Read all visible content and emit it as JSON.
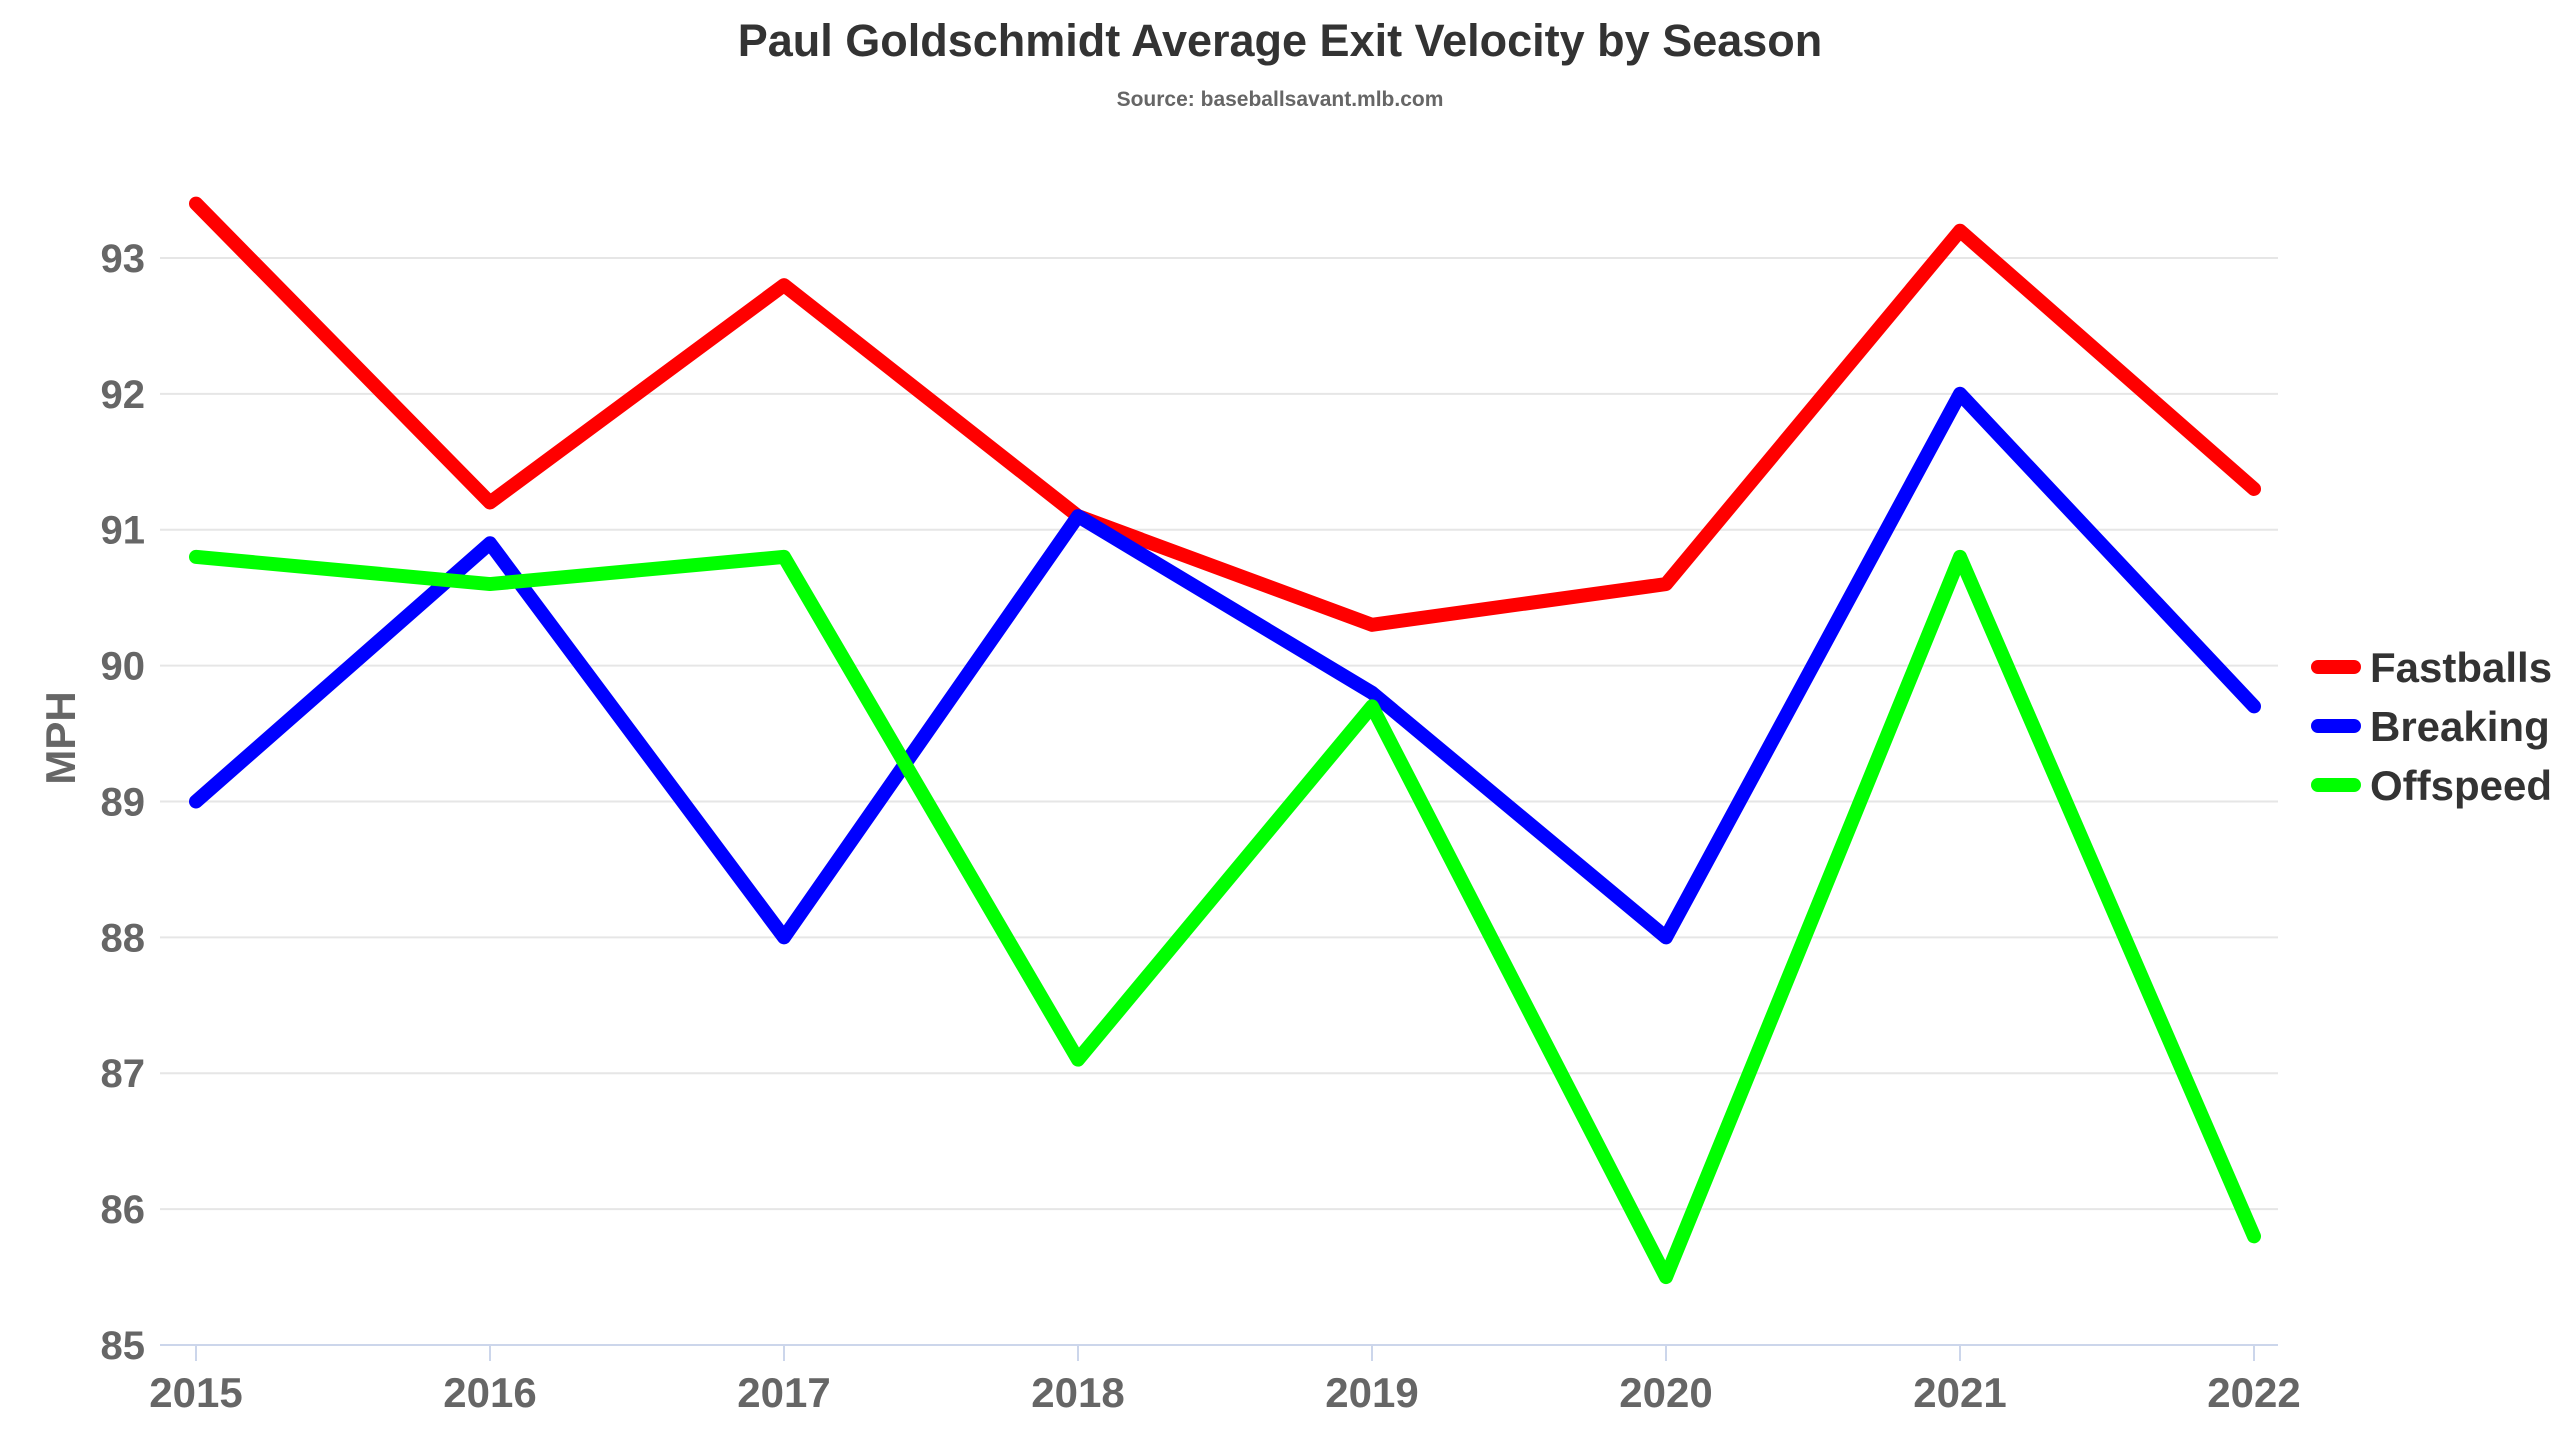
{
  "chart_data": {
    "type": "line",
    "title": "Paul Goldschmidt Average Exit Velocity by Season",
    "subtitle": "Source: baseballsavant.mlb.com",
    "xlabel": "",
    "ylabel": "MPH",
    "categories": [
      "2015",
      "2016",
      "2017",
      "2018",
      "2019",
      "2020",
      "2021",
      "2022"
    ],
    "ylim": [
      85,
      93.5
    ],
    "yticks": [
      85,
      86,
      87,
      88,
      89,
      90,
      91,
      92,
      93
    ],
    "grid": true,
    "legend_position": "right",
    "series": [
      {
        "name": "Fastballs",
        "color": "#ff0000",
        "values": [
          93.4,
          91.2,
          92.8,
          91.1,
          90.3,
          90.6,
          93.2,
          91.3
        ]
      },
      {
        "name": "Breaking",
        "color": "#0000ff",
        "values": [
          89.0,
          90.9,
          88.0,
          91.1,
          89.8,
          88.0,
          92.0,
          89.7
        ]
      },
      {
        "name": "Offspeed",
        "color": "#00ff00",
        "values": [
          90.8,
          90.6,
          90.8,
          87.1,
          89.7,
          85.5,
          90.8,
          85.8
        ]
      }
    ]
  }
}
